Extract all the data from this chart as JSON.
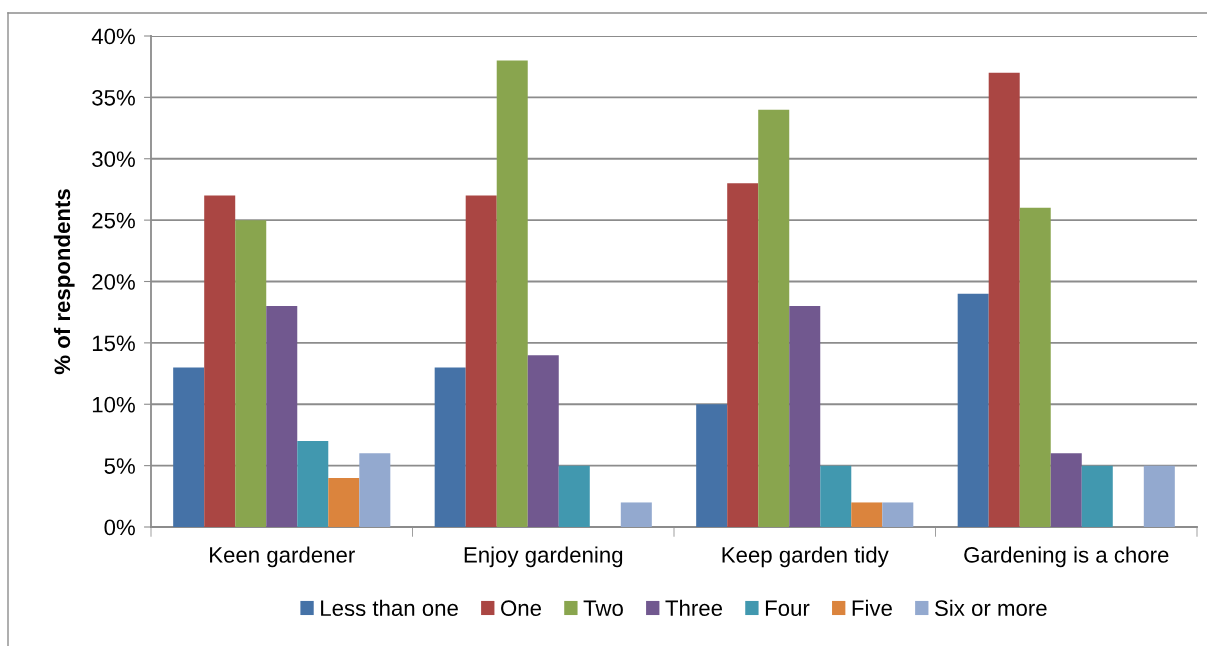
{
  "chart_data": {
    "type": "bar",
    "ylabel": "% of respondents",
    "categories": [
      "Keen gardener",
      "Enjoy gardening",
      "Keep garden tidy",
      "Gardening is a chore"
    ],
    "series": [
      {
        "name": "Less than one",
        "color": "#4572a7",
        "values": [
          13,
          13,
          10,
          19
        ]
      },
      {
        "name": "One",
        "color": "#aa4643",
        "values": [
          27,
          27,
          28,
          37
        ]
      },
      {
        "name": "Two",
        "color": "#89a54e",
        "values": [
          25,
          38,
          34,
          26
        ]
      },
      {
        "name": "Three",
        "color": "#71588f",
        "values": [
          18,
          14,
          18,
          6
        ]
      },
      {
        "name": "Four",
        "color": "#4198af",
        "values": [
          7,
          5,
          5,
          5
        ]
      },
      {
        "name": "Five",
        "color": "#db843d",
        "values": [
          4,
          null,
          2,
          null
        ]
      },
      {
        "name": "Six or more",
        "color": "#93a9cf",
        "values": [
          6,
          2,
          2,
          5
        ]
      }
    ],
    "ylim": [
      0,
      40
    ],
    "yticks": [
      {
        "value": 0,
        "label": "0%"
      },
      {
        "value": 5,
        "label": "5%"
      },
      {
        "value": 10,
        "label": "10%"
      },
      {
        "value": 15,
        "label": "15%"
      },
      {
        "value": 20,
        "label": "20%"
      },
      {
        "value": 25,
        "label": "25%"
      },
      {
        "value": 30,
        "label": "30%"
      },
      {
        "value": 35,
        "label": "35%"
      },
      {
        "value": 40,
        "label": "40%"
      }
    ],
    "grid": "y",
    "legend": "bottom"
  }
}
